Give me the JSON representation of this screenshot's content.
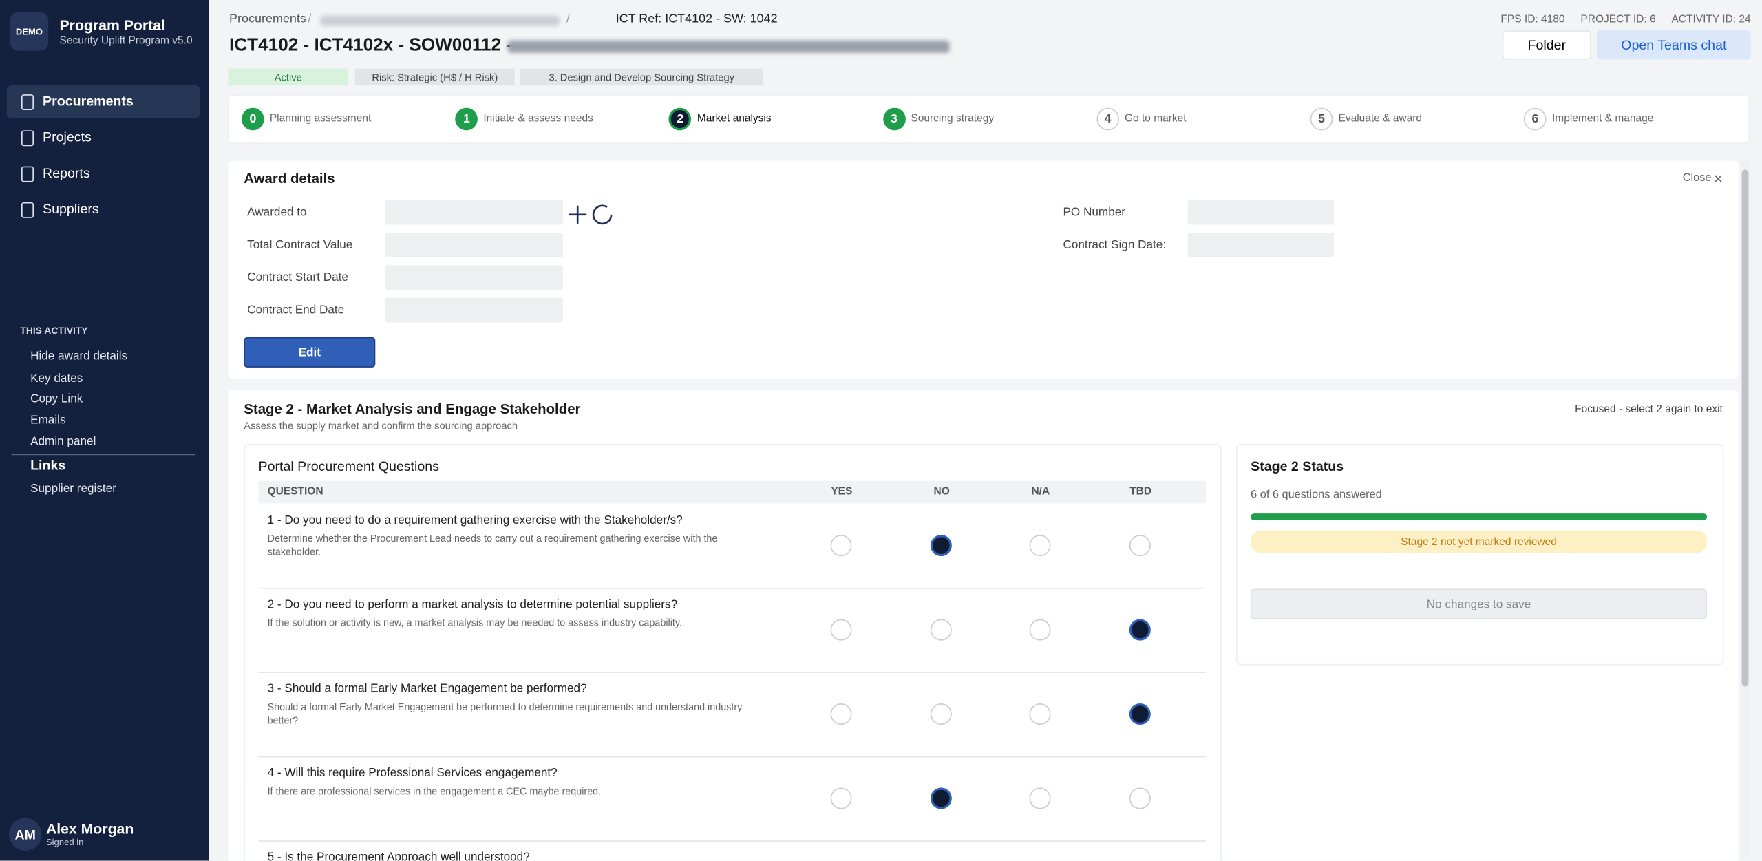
{
  "sidebar": {
    "logo": "DEMO",
    "app_title": "Program Portal",
    "app_subtitle": "Security Uplift Program v5.0",
    "nav": [
      "Procurements",
      "Projects",
      "Reports",
      "Suppliers"
    ],
    "active_nav": 0,
    "activity_heading": "THIS ACTIVITY",
    "activity_links": [
      "Hide award details",
      "Key dates",
      "Copy Link",
      "Emails",
      "Admin panel"
    ],
    "links_heading": "Links",
    "links": [
      "Supplier register"
    ],
    "user": {
      "initials": "AM",
      "name": "Alex Morgan",
      "status": "Signed in"
    }
  },
  "header": {
    "breadcrumb": [
      "Procurements",
      "/",
      "/"
    ],
    "ict_ref": "ICT Ref: ICT4102 - SW: 1042",
    "title": "ICT4102 - ICT4102x - SOW00112 -",
    "ids": [
      "FPS ID: 4180",
      "PROJECT ID: 6",
      "ACTIVITY ID: 24"
    ],
    "buttons": [
      "Folder",
      "Open Teams chat"
    ],
    "tags": [
      "Active",
      "Risk: Strategic (H$ / H Risk)",
      "3. Design and Develop Sourcing Strategy"
    ]
  },
  "stages": [
    {
      "number": "0",
      "label": "Planning assessment",
      "state": "done"
    },
    {
      "number": "1",
      "label": "Initiate & assess needs",
      "state": "done"
    },
    {
      "number": "2",
      "label": "Market analysis",
      "state": "current"
    },
    {
      "number": "3",
      "label": "Sourcing strategy",
      "state": "done"
    },
    {
      "number": "4",
      "label": "Go to market",
      "state": "todo"
    },
    {
      "number": "5",
      "label": "Evaluate & award",
      "state": "todo"
    },
    {
      "number": "6",
      "label": "Implement & manage",
      "state": "todo"
    }
  ],
  "award": {
    "title": "Award details",
    "close": "Close",
    "left_fields": [
      "Awarded to",
      "Total Contract Value",
      "Contract Start Date",
      "Contract End Date"
    ],
    "right_fields": [
      "PO Number",
      "Contract Sign Date:"
    ],
    "edit": "Edit"
  },
  "stage_section": {
    "title": "Stage 2 - Market Analysis and Engage Stakeholder",
    "subtitle": "Assess the supply market and confirm the sourcing approach",
    "hint": "Focused - select 2 again to exit"
  },
  "questions": {
    "title": "Portal Procurement Questions",
    "columns": [
      "QUESTION",
      "YES",
      "NO",
      "N/A",
      "TBD"
    ],
    "rows": [
      {
        "question": "1 - Do you need to do a requirement gathering exercise with the Stakeholder/s?",
        "description": "Determine whether the Procurement Lead needs to carry out a requirement gathering exercise with the stakeholder.",
        "answer": "NO"
      },
      {
        "question": "2 - Do you need to perform a market analysis to determine potential suppliers?",
        "description": "If the solution or activity is new, a market analysis may be needed to assess industry capability.",
        "answer": "TBD"
      },
      {
        "question": "3 - Should a formal Early Market Engagement be performed?",
        "description": "Should a formal Early Market Engagement be performed to determine requirements and understand industry better?",
        "answer": "TBD"
      },
      {
        "question": "4 - Will this require Professional Services engagement?",
        "description": "If there are professional services in the engagement a CEC maybe required.",
        "answer": "NO"
      },
      {
        "question": "5 - Is the Procurement Approach well understood?",
        "description": null,
        "answer": null
      }
    ]
  },
  "status": {
    "title": "Stage 2 Status",
    "progress": "6 of 6 questions answered",
    "warning": "Stage 2 not yet marked reviewed",
    "save": "No changes to save"
  }
}
